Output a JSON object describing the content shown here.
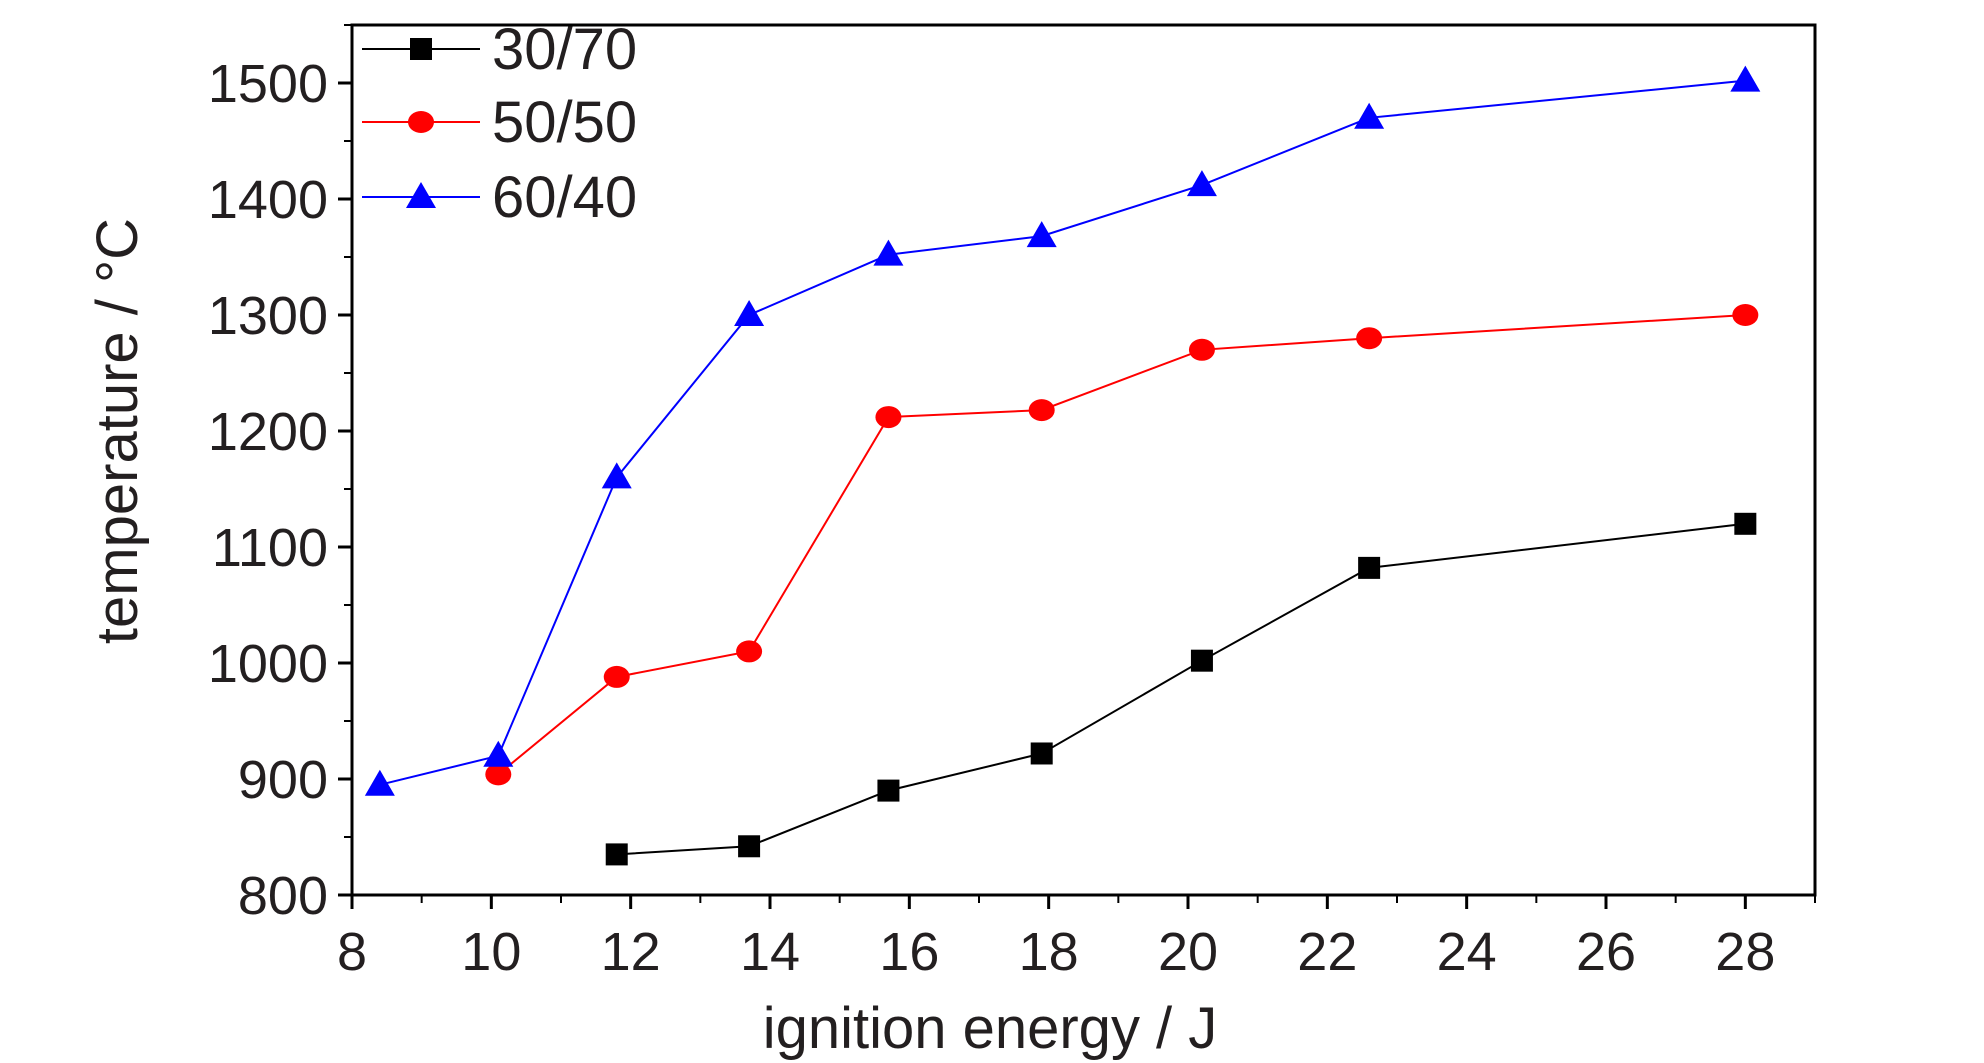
{
  "chart_data": {
    "type": "line",
    "title": "",
    "xlabel": "ignition energy / J",
    "ylabel": "temperature / °C",
    "xlim": [
      8,
      29
    ],
    "ylim": [
      800,
      1550
    ],
    "xticks": [
      8,
      10,
      12,
      14,
      16,
      18,
      20,
      22,
      24,
      26,
      28
    ],
    "yticks": [
      800,
      900,
      1000,
      1100,
      1200,
      1300,
      1400,
      1500
    ],
    "grid": false,
    "legend_position": "top-left",
    "series": [
      {
        "name": "30/70",
        "color": "#000000",
        "marker": "square",
        "x": [
          11.8,
          13.7,
          15.7,
          17.9,
          20.2,
          22.6,
          28.0
        ],
        "y": [
          835,
          842,
          890,
          922,
          1002,
          1082,
          1120
        ]
      },
      {
        "name": "50/50",
        "color": "#ff0000",
        "marker": "circle",
        "x": [
          10.1,
          11.8,
          13.7,
          15.7,
          17.9,
          20.2,
          22.6,
          28.0
        ],
        "y": [
          904,
          988,
          1010,
          1212,
          1218,
          1270,
          1280,
          1300
        ]
      },
      {
        "name": "60/40",
        "color": "#0000ff",
        "marker": "triangle",
        "x": [
          8.4,
          10.1,
          11.8,
          13.7,
          15.7,
          17.9,
          20.2,
          22.6,
          28.0
        ],
        "y": [
          895,
          920,
          1160,
          1300,
          1352,
          1368,
          1412,
          1470,
          1502
        ]
      }
    ]
  }
}
